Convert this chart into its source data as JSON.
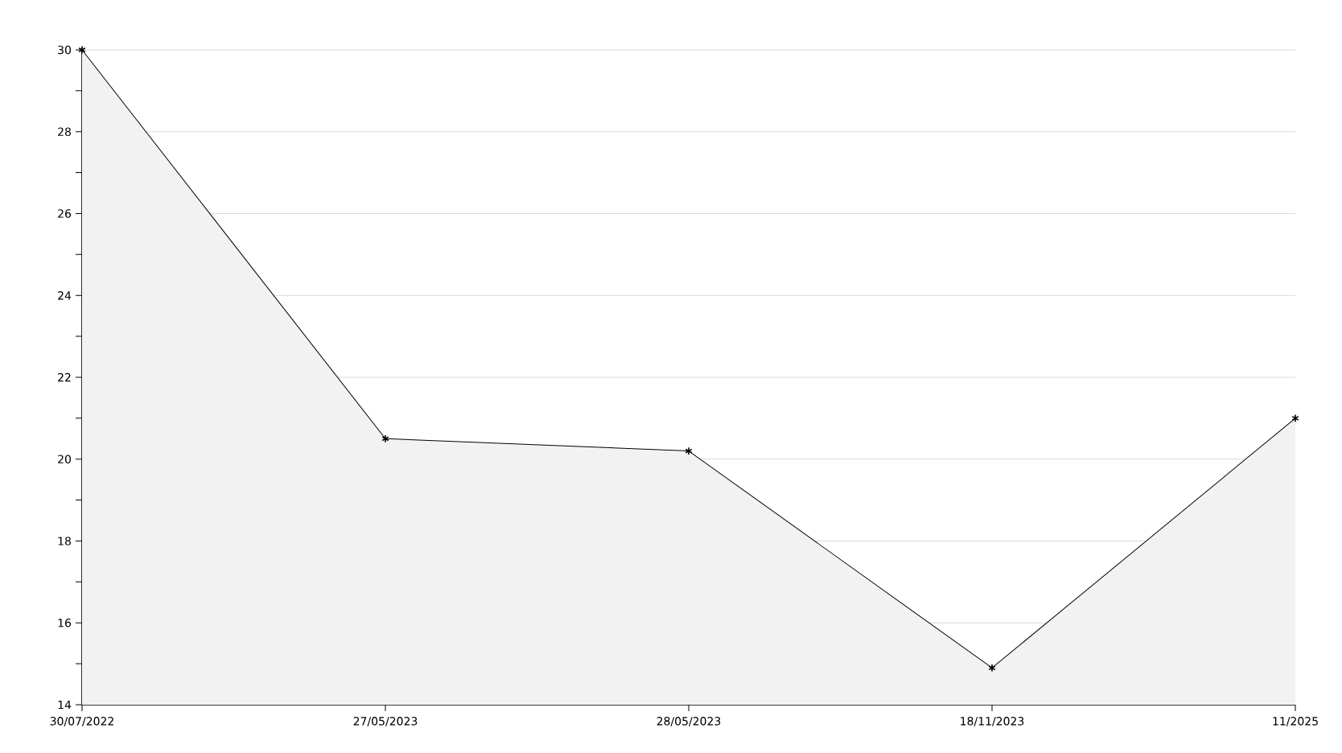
{
  "chart_data": {
    "type": "area",
    "categories": [
      "30/07/2022",
      "27/05/2023",
      "28/05/2023",
      "18/11/2023",
      "11/2025"
    ],
    "values": [
      30,
      20.5,
      20.2,
      14.9,
      21
    ],
    "color": "#000000",
    "ylim": [
      14,
      30
    ],
    "yticks": [
      14,
      16,
      18,
      20,
      22,
      24,
      26,
      28,
      30
    ],
    "grid": "y",
    "marker": "cross",
    "line_style": "solid"
  }
}
